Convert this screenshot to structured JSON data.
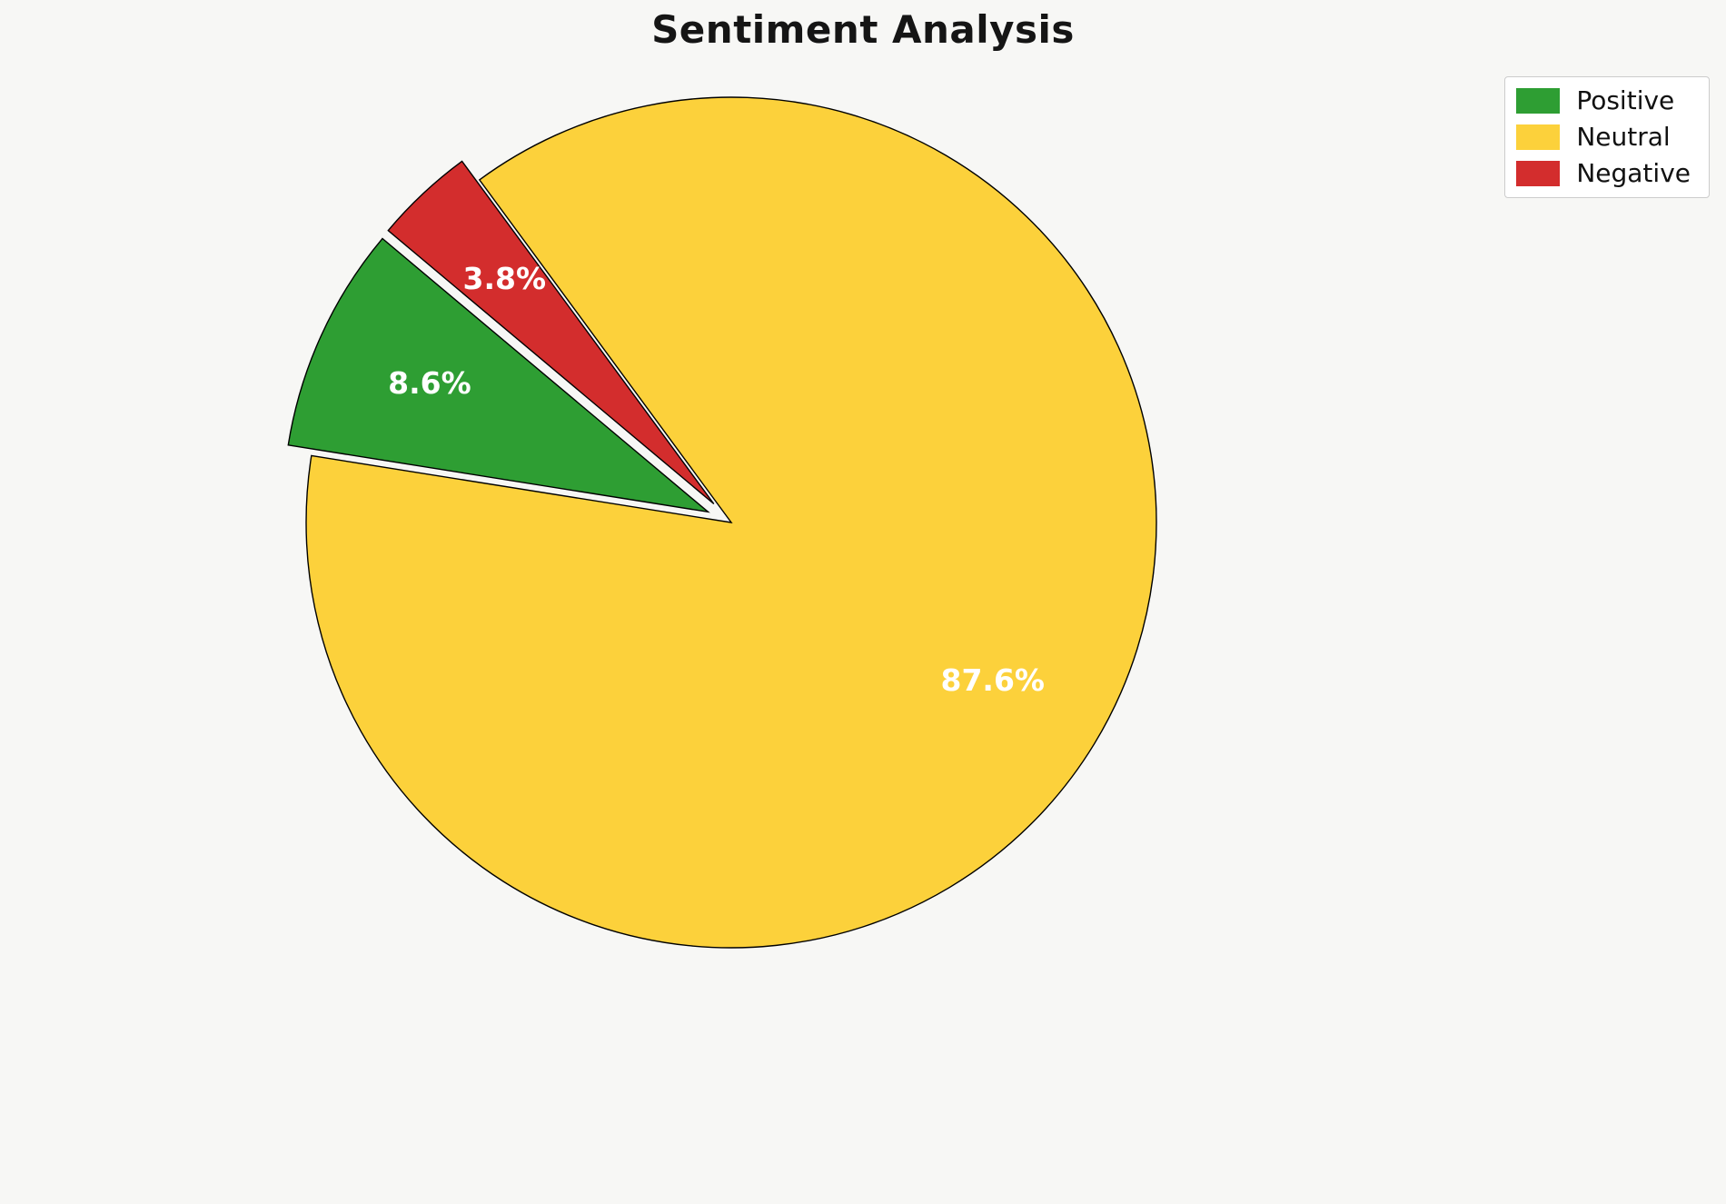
{
  "title": "Sentiment Analysis",
  "chart_data": {
    "type": "pie",
    "title": "Sentiment Analysis",
    "labels": [
      "Positive",
      "Neutral",
      "Negative"
    ],
    "values": [
      8.6,
      87.6,
      3.8
    ],
    "pct_labels": [
      "8.6%",
      "87.6%",
      "3.8%"
    ],
    "colors": [
      "#2e9e33",
      "#fcd13b",
      "#d32d2d"
    ],
    "explode": [
      0.06,
      0,
      0.06
    ],
    "start_angle": 140,
    "direction": "counterclockwise",
    "edge_color": "#000000",
    "label_color": "#ffffff",
    "legend_position": "upper right",
    "background": "#f7f7f5"
  }
}
